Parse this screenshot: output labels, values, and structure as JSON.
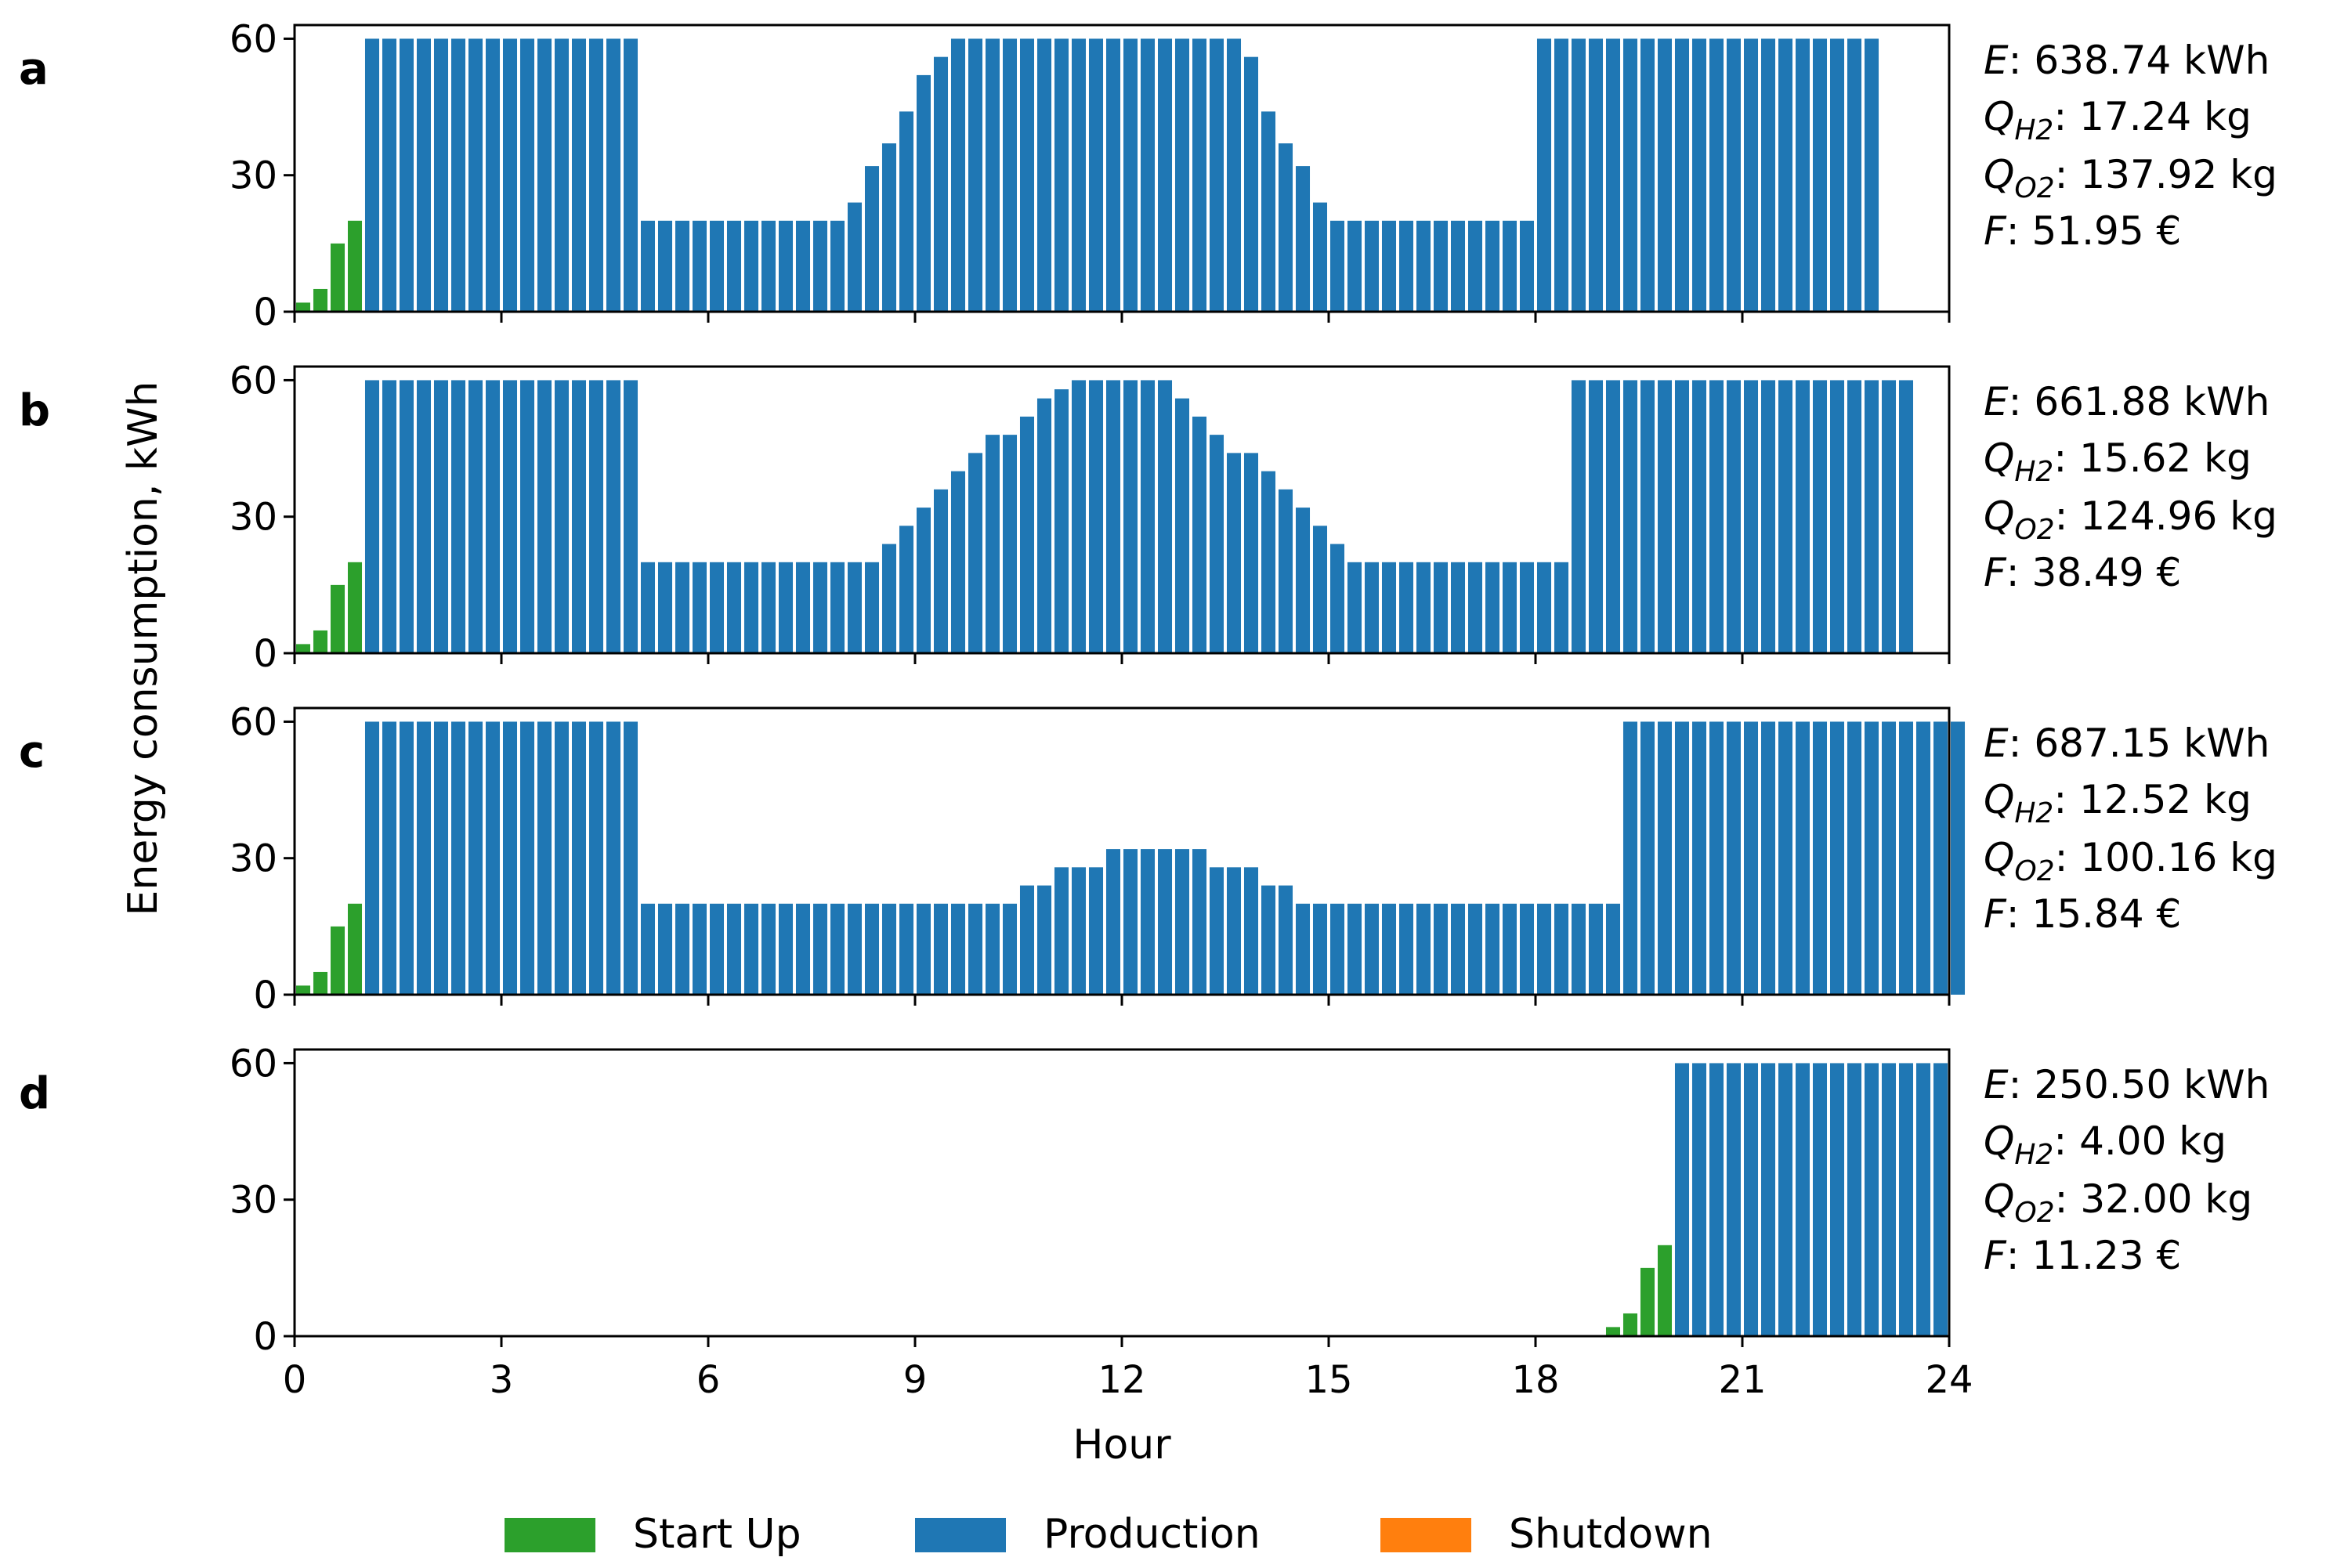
{
  "figure": {
    "ylabel": "Energy consumption, kWh",
    "xlabel": "Hour",
    "x_ticks": [
      "0",
      "3",
      "6",
      "9",
      "12",
      "15",
      "18",
      "21",
      "24"
    ],
    "y_ticks": [
      "0",
      "30",
      "60"
    ],
    "legend": [
      {
        "label": "Start Up",
        "color": "#2ca02c"
      },
      {
        "label": "Production",
        "color": "#1f77b4"
      },
      {
        "label": "Shutdown",
        "color": "#ff7f0e"
      }
    ]
  },
  "chart_data": [
    {
      "type": "bar",
      "panel": "a",
      "xlim": [
        0,
        24
      ],
      "ylim": [
        0,
        63
      ],
      "start_up": [
        2,
        5,
        15,
        20
      ],
      "production": [
        60,
        60,
        60,
        60,
        60,
        60,
        60,
        60,
        60,
        60,
        60,
        60,
        60,
        60,
        60,
        60,
        20,
        20,
        20,
        20,
        20,
        20,
        20,
        20,
        20,
        20,
        20,
        20,
        24,
        32,
        37,
        44,
        52,
        56,
        60,
        60,
        60,
        60,
        60,
        60,
        60,
        60,
        60,
        60,
        60,
        60,
        60,
        60,
        60,
        60,
        60,
        56,
        44,
        37,
        32,
        24,
        20,
        20,
        20,
        20,
        20,
        20,
        20,
        20,
        20,
        20,
        20,
        20,
        60,
        60,
        60,
        60,
        60,
        60,
        60,
        60,
        60,
        60,
        60,
        60,
        60,
        60,
        60,
        60,
        60,
        60,
        60,
        60
      ],
      "annotation": {
        "E_label": "E",
        "E": ": 638.74 kWh",
        "QH2_label": "Q",
        "QH2_sub": "H2",
        "QH2": ": 17.24 kg",
        "QO2_label": "Q",
        "QO2_sub": "O2",
        "QO2": ": 137.92 kg",
        "F_label": "F",
        "F": ": 51.95 €"
      }
    },
    {
      "type": "bar",
      "panel": "b",
      "xlim": [
        0,
        24
      ],
      "ylim": [
        0,
        63
      ],
      "start_up": [
        2,
        5,
        15,
        20
      ],
      "production": [
        60,
        60,
        60,
        60,
        60,
        60,
        60,
        60,
        60,
        60,
        60,
        60,
        60,
        60,
        60,
        60,
        20,
        20,
        20,
        20,
        20,
        20,
        20,
        20,
        20,
        20,
        20,
        20,
        20,
        20,
        24,
        28,
        32,
        36,
        40,
        44,
        48,
        48,
        52,
        56,
        58,
        60,
        60,
        60,
        60,
        60,
        60,
        56,
        52,
        48,
        44,
        44,
        40,
        36,
        32,
        28,
        24,
        20,
        20,
        20,
        20,
        20,
        20,
        20,
        20,
        20,
        20,
        20,
        20,
        20,
        60,
        60,
        60,
        60,
        60,
        60,
        60,
        60,
        60,
        60,
        60,
        60,
        60,
        60,
        60,
        60,
        60,
        60,
        60,
        60
      ],
      "annotation": {
        "E_label": "E",
        "E": ": 661.88 kWh",
        "QH2_label": "Q",
        "QH2_sub": "H2",
        "QH2": ": 15.62 kg",
        "QO2_label": "Q",
        "QO2_sub": "O2",
        "QO2": ": 124.96 kg",
        "F_label": "F",
        "F": ": 38.49 €"
      }
    },
    {
      "type": "bar",
      "panel": "c",
      "xlim": [
        0,
        24
      ],
      "ylim": [
        0,
        63
      ],
      "start_up": [
        2,
        5,
        15,
        20
      ],
      "production": [
        60,
        60,
        60,
        60,
        60,
        60,
        60,
        60,
        60,
        60,
        60,
        60,
        60,
        60,
        60,
        60,
        20,
        20,
        20,
        20,
        20,
        20,
        20,
        20,
        20,
        20,
        20,
        20,
        20,
        20,
        20,
        20,
        20,
        20,
        20,
        20,
        20,
        20,
        24,
        24,
        28,
        28,
        28,
        32,
        32,
        32,
        32,
        32,
        32,
        28,
        28,
        28,
        24,
        24,
        20,
        20,
        20,
        20,
        20,
        20,
        20,
        20,
        20,
        20,
        20,
        20,
        20,
        20,
        20,
        20,
        20,
        20,
        20,
        60,
        60,
        60,
        60,
        60,
        60,
        60,
        60,
        60,
        60,
        60,
        60,
        60,
        60,
        60,
        60,
        60,
        60,
        60,
        60
      ],
      "annotation": {
        "E_label": "E",
        "E": ": 687.15 kWh",
        "QH2_label": "Q",
        "QH2_sub": "H2",
        "QH2": ": 12.52 kg",
        "QO2_label": "Q",
        "QO2_sub": "O2",
        "QO2": ": 100.16 kg",
        "F_label": "F",
        "F": ": 15.84 €"
      }
    },
    {
      "type": "bar",
      "panel": "d",
      "xlim": [
        0,
        24
      ],
      "ylim": [
        0,
        63
      ],
      "start_up_start_hour": 19,
      "start_up": [
        2,
        5,
        15,
        20
      ],
      "production": [
        60,
        60,
        60,
        60,
        60,
        60,
        60,
        60,
        60,
        60,
        60,
        60,
        60,
        60,
        60,
        60
      ],
      "annotation": {
        "E_label": "E",
        "E": ": 250.50 kWh",
        "QH2_label": "Q",
        "QH2_sub": "H2",
        "QH2": ": 4.00 kg",
        "QO2_label": "Q",
        "QO2_sub": "O2",
        "QO2": ": 32.00 kg",
        "F_label": "F",
        "F": ": 11.23 €"
      }
    }
  ]
}
